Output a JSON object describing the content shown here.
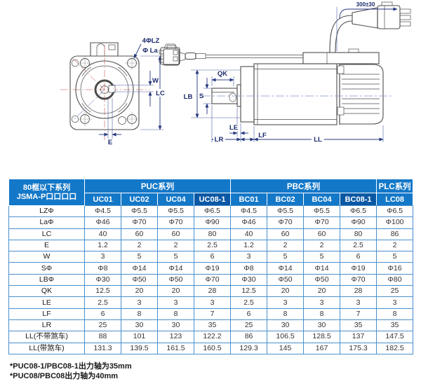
{
  "drawing": {
    "front": {
      "holes_label": "4ΦLZ",
      "bolt_circle_label": "Φ La",
      "key_width_label": "W",
      "frame_label": "LC",
      "key_offset_label": "E"
    },
    "side": {
      "key_length_label": "QK",
      "pilot_label": "LB",
      "shaft_label": "S",
      "boss_label": "LE",
      "shaft_length_label": "LR",
      "flange_label": "LF",
      "body_length_label": "LL",
      "cable_length_label": "300±30"
    }
  },
  "table": {
    "corner_title_line1": "80框以下系列",
    "corner_title_line2": "JSMA-P口口口口",
    "series": [
      {
        "label": "PUC系列",
        "span": 4
      },
      {
        "label": "PBC系列",
        "span": 4
      },
      {
        "label": "PLC系列",
        "span": 1
      }
    ],
    "models": [
      {
        "label": "UC01",
        "dark": false
      },
      {
        "label": "UC02",
        "dark": false
      },
      {
        "label": "UC04",
        "dark": false
      },
      {
        "label": "UC08-1",
        "dark": true
      },
      {
        "label": "BC01",
        "dark": false
      },
      {
        "label": "BC02",
        "dark": false
      },
      {
        "label": "BC04",
        "dark": false
      },
      {
        "label": "BC08-1",
        "dark": true
      },
      {
        "label": "LC08",
        "dark": false
      }
    ],
    "rows": [
      {
        "label": "LZΦ",
        "values": [
          "Φ4.5",
          "Φ5.5",
          "Φ5.5",
          "Φ6.5",
          "Φ4.5",
          "Φ5.5",
          "Φ5.5",
          "Φ6.5",
          "Φ6.5"
        ]
      },
      {
        "label": "LaΦ",
        "values": [
          "Φ46",
          "Φ70",
          "Φ70",
          "Φ90",
          "Φ46",
          "Φ70",
          "Φ70",
          "Φ90",
          "Φ100"
        ]
      },
      {
        "label": "LC",
        "values": [
          "40",
          "60",
          "60",
          "80",
          "40",
          "60",
          "60",
          "80",
          "86"
        ]
      },
      {
        "label": "E",
        "values": [
          "1.2",
          "2",
          "2",
          "2.5",
          "1.2",
          "2",
          "2",
          "2.5",
          "2"
        ]
      },
      {
        "label": "W",
        "values": [
          "3",
          "5",
          "5",
          "6",
          "3",
          "5",
          "5",
          "6",
          "5"
        ]
      },
      {
        "label": "SΦ",
        "values": [
          "Φ8",
          "Φ14",
          "Φ14",
          "Φ19",
          "Φ8",
          "Φ14",
          "Φ14",
          "Φ19",
          "Φ16"
        ]
      },
      {
        "label": "LBΦ",
        "values": [
          "Φ30",
          "Φ50",
          "Φ50",
          "Φ70",
          "Φ30",
          "Φ50",
          "Φ50",
          "Φ70",
          "Φ80"
        ]
      },
      {
        "label": "QK",
        "values": [
          "12.5",
          "20",
          "20",
          "28",
          "12.5",
          "20",
          "20",
          "28",
          "25"
        ]
      },
      {
        "label": "LE",
        "values": [
          "2.5",
          "3",
          "3",
          "3",
          "2.5",
          "3",
          "3",
          "3",
          "3"
        ]
      },
      {
        "label": "LF",
        "values": [
          "6",
          "8",
          "8",
          "7",
          "6",
          "8",
          "8",
          "7",
          "8"
        ]
      },
      {
        "label": "LR",
        "values": [
          "25",
          "30",
          "30",
          "35",
          "25",
          "30",
          "30",
          "35",
          "35"
        ]
      },
      {
        "label": "LL(不带煞车)",
        "values": [
          "88",
          "101",
          "123",
          "122.2",
          "86",
          "106.5",
          "128.5",
          "137",
          "147.5"
        ]
      },
      {
        "label": "LL(带煞车)",
        "values": [
          "131.3",
          "139.5",
          "161.5",
          "160.5",
          "129.3",
          "145",
          "167",
          "175.3",
          "182.5"
        ]
      }
    ]
  },
  "footnotes": [
    "*PUC08-1/PBC08-1出力轴为35mm",
    "*PUC08/PBC08出力轴为40mm"
  ],
  "colors": {
    "header_blue": "#1478C8",
    "header_dark_blue": "#0A58A4",
    "grid_blue": "#4A90CD",
    "dimension_navy": "#1B2A6B",
    "centerline_red": "#D9807D"
  }
}
